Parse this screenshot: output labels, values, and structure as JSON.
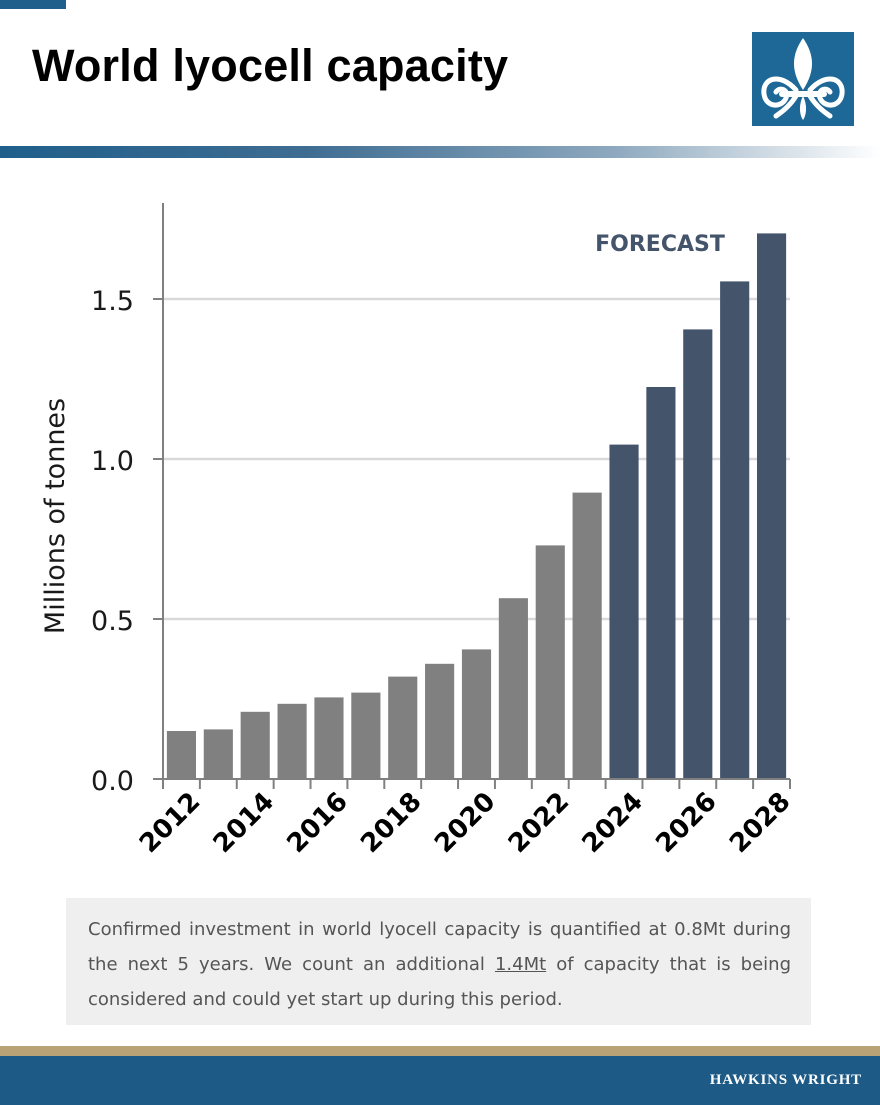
{
  "page": {
    "title": "World lyocell capacity",
    "brand": "HAWKINS WRIGHT",
    "note": {
      "text_before": "Confirmed investment in world lyocell capacity is quantified at 0.8Mt during the next 5 years. We count an additional ",
      "text_highlight": "1.4Mt",
      "text_after": " of capacity that is being considered and could yet start up during this period."
    }
  },
  "colors": {
    "brand_blue": "#1d6896",
    "historic_bar": "#808080",
    "forecast_bar": "#44546a",
    "forecast_label": "#44546a",
    "gridline": "#d9d9d9",
    "axis": "#808080"
  },
  "chart_data": {
    "type": "bar",
    "title": "",
    "xlabel": "",
    "ylabel": "Millions of tonnes",
    "ylim": [
      0,
      1.8
    ],
    "yticks": [
      0.0,
      0.5,
      1.0,
      1.5
    ],
    "ytick_labels": [
      "0.0",
      "0.5",
      "1.0",
      "1.5"
    ],
    "grid": true,
    "categories": [
      "2012",
      "2013",
      "2014",
      "2015",
      "2016",
      "2017",
      "2018",
      "2019",
      "2020",
      "2021",
      "2022",
      "2023",
      "2024",
      "2025",
      "2026",
      "2027",
      "2028"
    ],
    "xtick_labels": [
      "2012",
      "2014",
      "2016",
      "2018",
      "2020",
      "2022",
      "2024",
      "2026",
      "2028"
    ],
    "values": [
      0.15,
      0.155,
      0.21,
      0.235,
      0.255,
      0.27,
      0.32,
      0.36,
      0.405,
      0.565,
      0.73,
      0.895,
      1.045,
      1.225,
      1.405,
      1.555,
      1.705
    ],
    "forecast_from": "2024",
    "annotation": "FORECAST"
  }
}
